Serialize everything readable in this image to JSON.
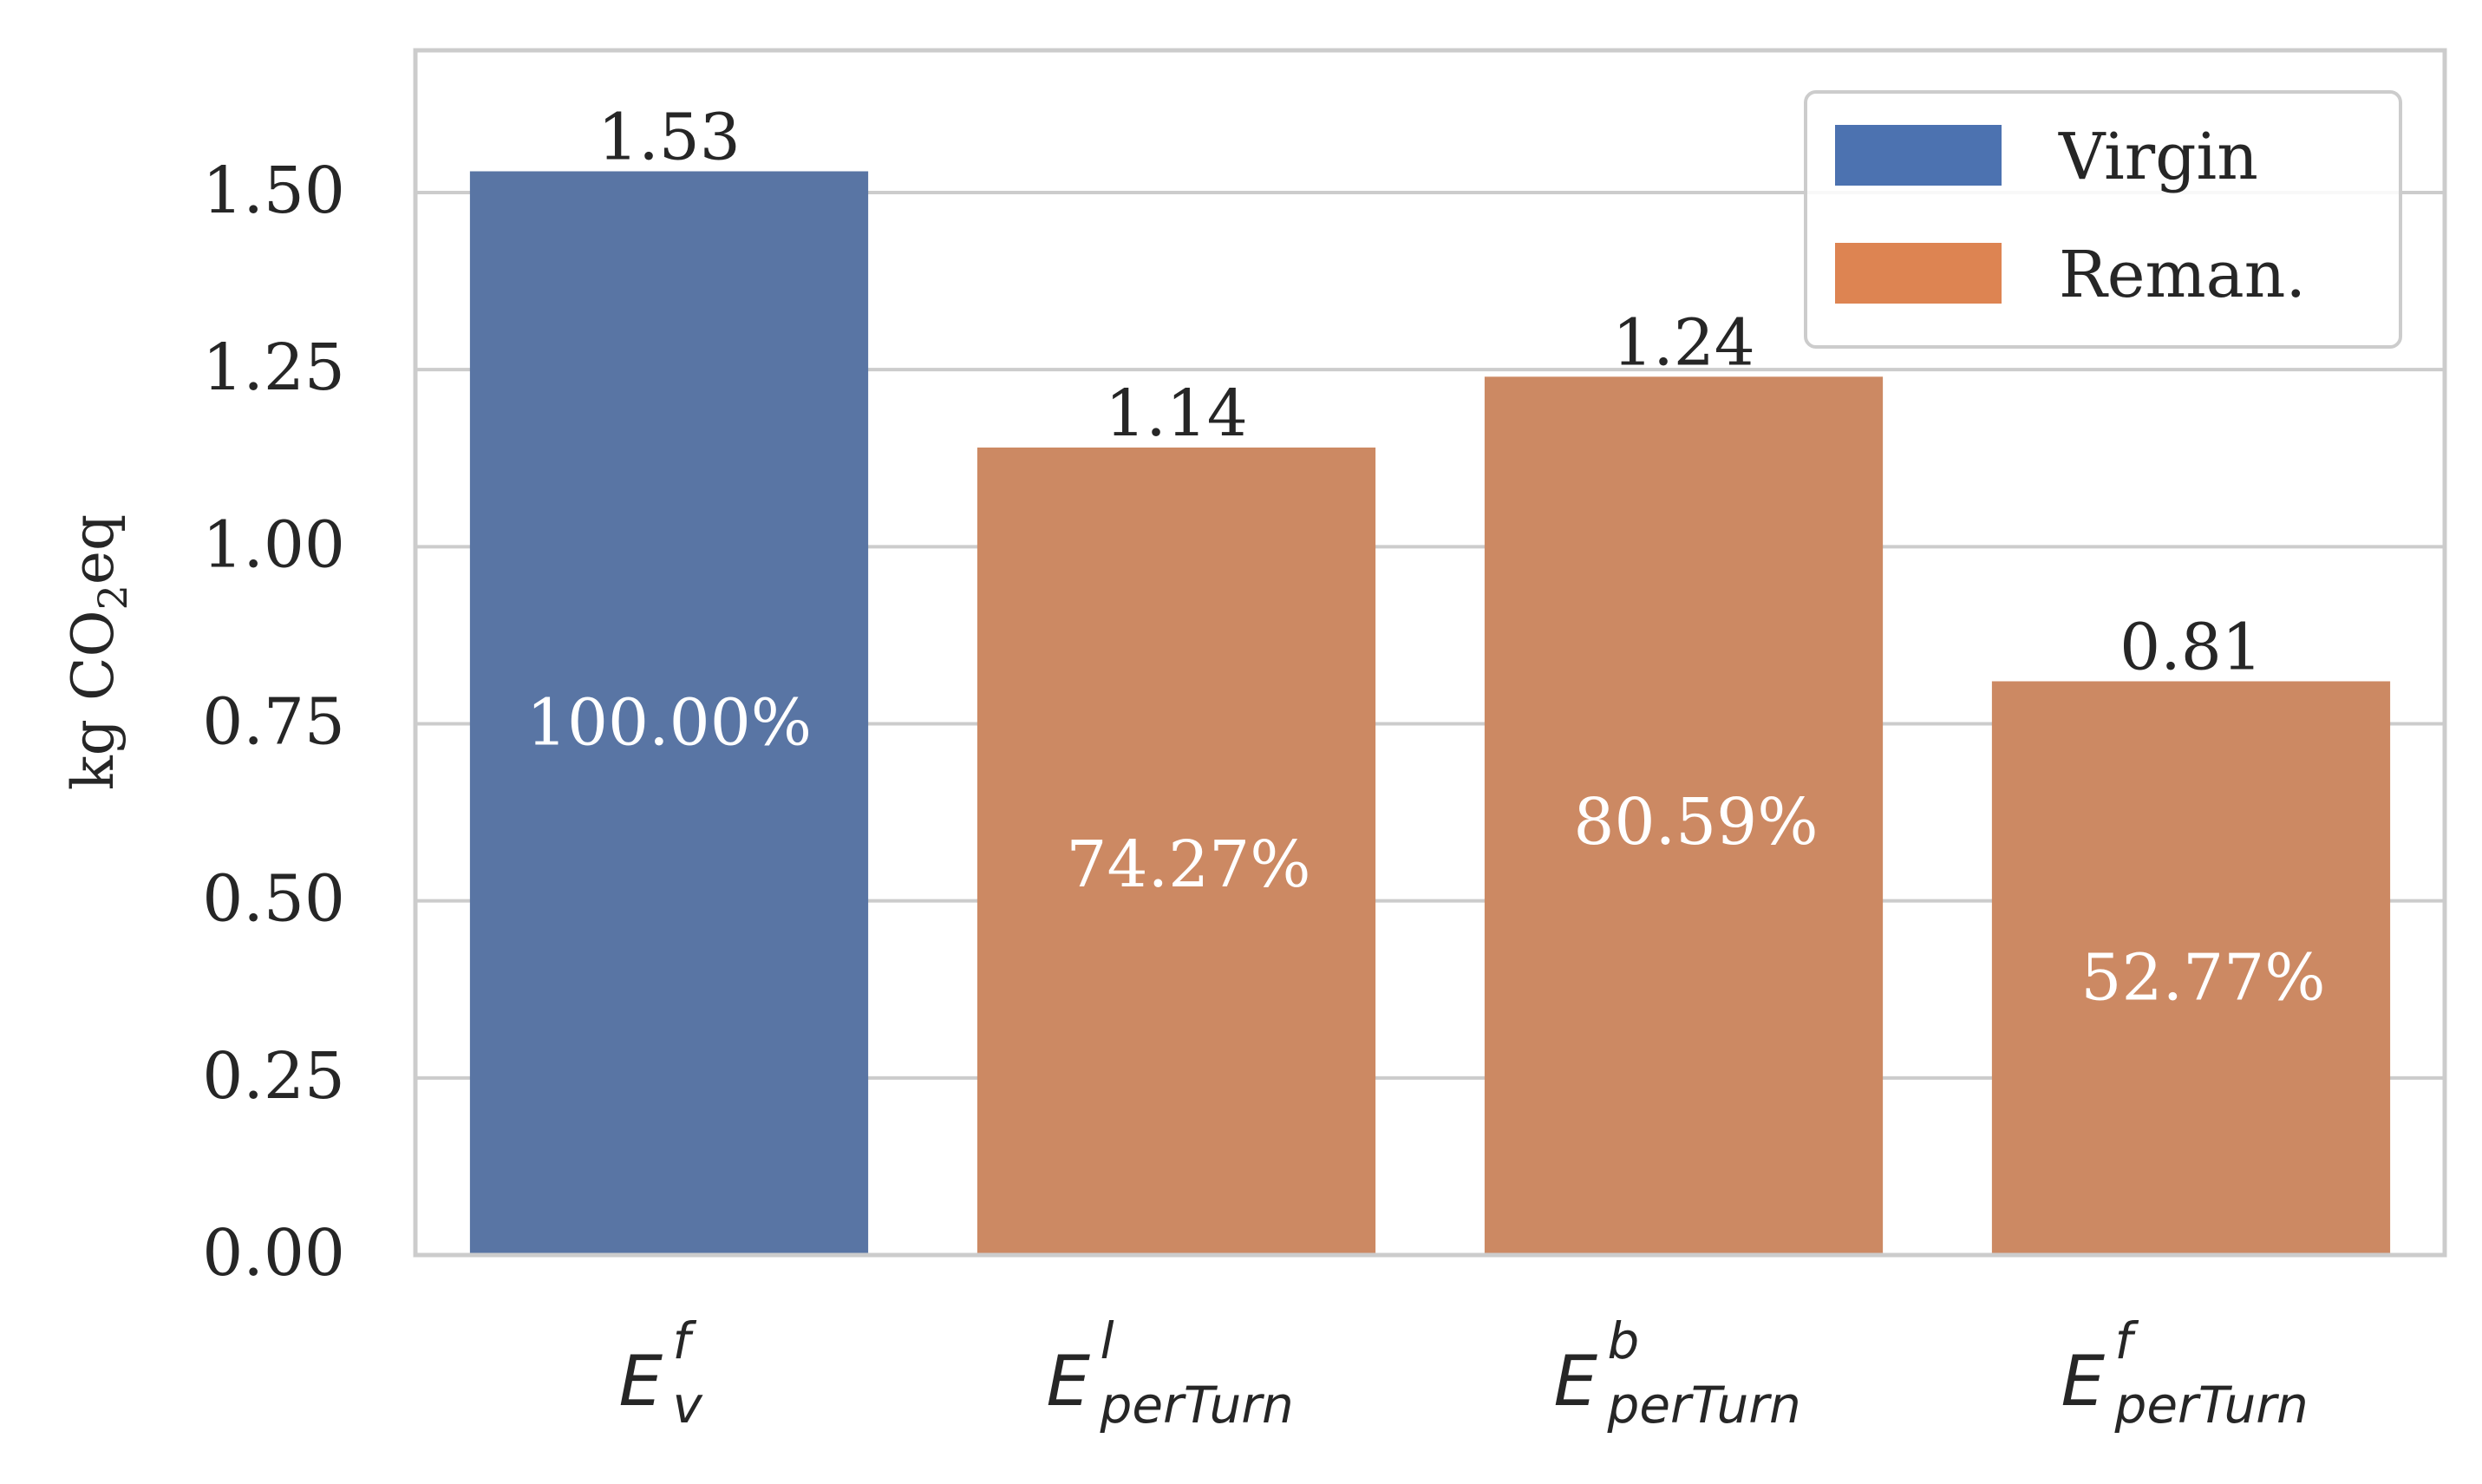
{
  "chart_data": {
    "type": "bar",
    "title": "",
    "xlabel": "",
    "ylabel": {
      "main_before": "kg CO",
      "subscript": "2",
      "main_after": "eq"
    },
    "ylim": [
      0,
      1.7
    ],
    "yticks": [
      "0.00",
      "0.25",
      "0.50",
      "0.75",
      "1.00",
      "1.25",
      "1.50"
    ],
    "ytick_values": [
      0,
      0.25,
      0.5,
      0.75,
      1.0,
      1.25,
      1.5
    ],
    "grid": "y",
    "legend_position": "top-right",
    "legend": [
      {
        "label": "Virgin",
        "color": "#4C72B0"
      },
      {
        "label": "Reman.",
        "color": "#DD8452"
      }
    ],
    "categories": [
      {
        "base": "E",
        "sup": "f",
        "sub": "v"
      },
      {
        "base": "E",
        "sup": "l",
        "sub": "perTurn"
      },
      {
        "base": "E",
        "sup": "b",
        "sub": "perTurn"
      },
      {
        "base": "E",
        "sup": "f",
        "sub": "perTurn"
      }
    ],
    "values": [
      1.53,
      1.14,
      1.24,
      0.81
    ],
    "value_labels": [
      "1.53",
      "1.14",
      "1.24",
      "0.81"
    ],
    "percent_labels": [
      "100.00%",
      "74.27%",
      "80.59%",
      "52.77%"
    ],
    "percent_label_y": [
      0.75,
      0.55,
      0.61,
      0.39
    ],
    "bar_series": [
      "Virgin",
      "Reman.",
      "Reman.",
      "Reman."
    ],
    "bar_colors": [
      "#5975A4",
      "#CC8963",
      "#CC8963",
      "#CC8963"
    ]
  }
}
